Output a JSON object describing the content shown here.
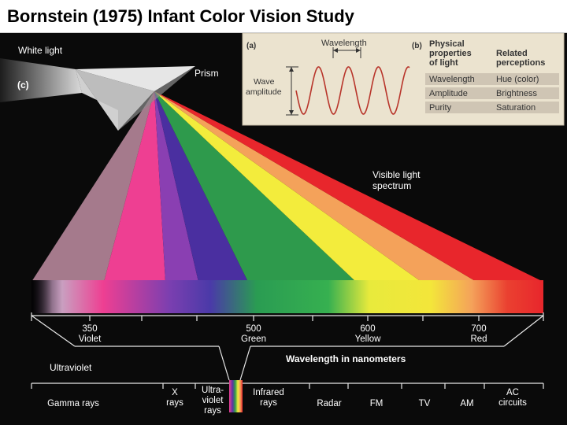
{
  "slide": {
    "title": "Bornstein (1975) Infant Color Vision Study"
  },
  "figure": {
    "panel_c": {
      "label": "(c)",
      "white_light": "White light",
      "prism": "Prism",
      "visible_spectrum": [
        "Visible light",
        "spectrum"
      ]
    },
    "panel_a": {
      "label": "(a)",
      "wavelength": "Wavelength",
      "wave_amplitude": [
        "Wave",
        "amplitude"
      ]
    },
    "panel_b": {
      "label": "(b)",
      "col1_header": [
        "Physical",
        "properties",
        "of light"
      ],
      "col2_header": [
        "Related",
        "perceptions"
      ],
      "rows": [
        {
          "property": "Wavelength",
          "perception": "Hue (color)"
        },
        {
          "property": "Amplitude",
          "perception": "Brightness"
        },
        {
          "property": "Purity",
          "perception": "Saturation"
        }
      ]
    },
    "scale": {
      "ticks": [
        {
          "nm": "350",
          "color": "Violet"
        },
        {
          "nm": "500",
          "color": "Green"
        },
        {
          "nm": "600",
          "color": "Yellow"
        },
        {
          "nm": "700",
          "color": "Red"
        }
      ],
      "axis_label": "Wavelength in nanometers",
      "ultraviolet": "Ultraviolet"
    },
    "em_spectrum": [
      {
        "lines": [
          "Gamma rays"
        ]
      },
      {
        "lines": [
          "X",
          "rays"
        ]
      },
      {
        "lines": [
          "Ultra-",
          "violet",
          "rays"
        ]
      },
      {
        "lines": [
          "Infrared",
          "rays"
        ]
      },
      {
        "lines": [
          "Radar"
        ]
      },
      {
        "lines": [
          "FM"
        ]
      },
      {
        "lines": [
          "TV"
        ]
      },
      {
        "lines": [
          "AM"
        ]
      },
      {
        "lines": [
          "AC",
          "circuits"
        ]
      }
    ],
    "colors": {
      "background": "#0a0a0a",
      "panel": "#ebe3cf",
      "table_row": "#cfc5b4",
      "wave": "#b8342a",
      "spectrum": [
        "#d9a0b8",
        "#ee3f92",
        "#5b34a3",
        "#2e9a4c",
        "#f3ec3c",
        "#f4a25a",
        "#e8262c"
      ]
    }
  }
}
